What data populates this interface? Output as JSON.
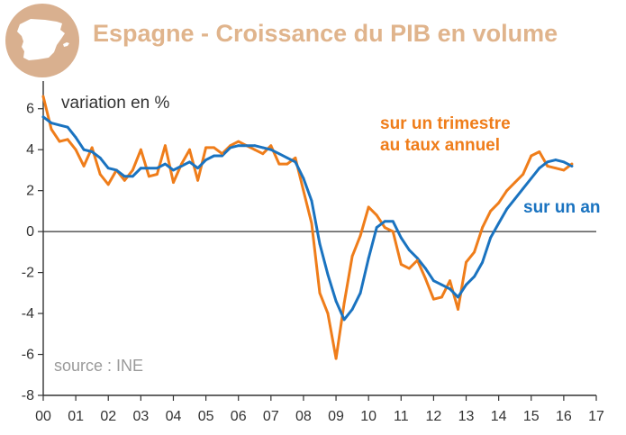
{
  "chart_data": {
    "type": "line",
    "title": "Espagne - Croissance du PIB en volume",
    "ylabel": "variation en %",
    "source": "source : INE",
    "ylim": [
      -8,
      7
    ],
    "xlim": [
      0,
      17
    ],
    "yticks": [
      -8,
      -6,
      -4,
      -2,
      0,
      2,
      4,
      6
    ],
    "xtick_labels": [
      "00",
      "01",
      "02",
      "03",
      "04",
      "05",
      "06",
      "07",
      "08",
      "09",
      "10",
      "11",
      "12",
      "13",
      "14",
      "15",
      "16",
      "17"
    ],
    "grid": false,
    "colors": {
      "annualized": "#ef7d1a",
      "yoy": "#1a73c0",
      "title": "#e0b48c",
      "logo_circle": "#d9b08f",
      "axis": "#333333"
    },
    "series": [
      {
        "name": "sur un trimestre au taux annuel",
        "key": "annualized",
        "x": [
          0.0,
          0.25,
          0.5,
          0.75,
          1.0,
          1.25,
          1.5,
          1.75,
          2.0,
          2.25,
          2.5,
          2.75,
          3.0,
          3.25,
          3.5,
          3.75,
          4.0,
          4.25,
          4.5,
          4.75,
          5.0,
          5.25,
          5.5,
          5.75,
          6.0,
          6.25,
          6.5,
          6.75,
          7.0,
          7.25,
          7.5,
          7.75,
          8.0,
          8.25,
          8.5,
          8.75,
          9.0,
          9.25,
          9.5,
          9.75,
          10.0,
          10.25,
          10.5,
          10.75,
          11.0,
          11.25,
          11.5,
          11.75,
          12.0,
          12.25,
          12.5,
          12.75,
          13.0,
          13.25,
          13.5,
          13.75,
          14.0,
          14.25,
          14.5,
          14.75,
          15.0,
          15.25,
          15.5,
          15.75,
          16.0,
          16.25
        ],
        "values": [
          6.6,
          5.0,
          4.4,
          4.5,
          4.0,
          3.2,
          4.1,
          2.8,
          2.3,
          3.0,
          2.5,
          3.0,
          4.0,
          2.7,
          2.8,
          4.2,
          2.4,
          3.3,
          4.0,
          2.5,
          4.1,
          4.1,
          3.8,
          4.2,
          4.4,
          4.2,
          4.0,
          3.8,
          4.2,
          3.3,
          3.3,
          3.6,
          2.0,
          0.4,
          -3.0,
          -4.0,
          -6.2,
          -3.5,
          -1.2,
          -0.2,
          1.2,
          0.8,
          0.2,
          0.0,
          -1.6,
          -1.8,
          -1.4,
          -2.3,
          -3.3,
          -3.2,
          -2.4,
          -3.8,
          -1.5,
          -1.0,
          0.2,
          1.0,
          1.4,
          2.0,
          2.4,
          2.8,
          3.7,
          3.9,
          3.2,
          3.1,
          3.0,
          3.3
        ]
      },
      {
        "name": "sur un an",
        "key": "yoy",
        "x": [
          0.0,
          0.25,
          0.5,
          0.75,
          1.0,
          1.25,
          1.5,
          1.75,
          2.0,
          2.25,
          2.5,
          2.75,
          3.0,
          3.25,
          3.5,
          3.75,
          4.0,
          4.25,
          4.5,
          4.75,
          5.0,
          5.25,
          5.5,
          5.75,
          6.0,
          6.25,
          6.5,
          6.75,
          7.0,
          7.25,
          7.5,
          7.75,
          8.0,
          8.25,
          8.5,
          8.75,
          9.0,
          9.25,
          9.5,
          9.75,
          10.0,
          10.25,
          10.5,
          10.75,
          11.0,
          11.25,
          11.5,
          11.75,
          12.0,
          12.25,
          12.5,
          12.75,
          13.0,
          13.25,
          13.5,
          13.75,
          14.0,
          14.25,
          14.5,
          14.75,
          15.0,
          15.25,
          15.5,
          15.75,
          16.0,
          16.25
        ],
        "values": [
          5.6,
          5.3,
          5.2,
          5.1,
          4.6,
          4.0,
          3.9,
          3.6,
          3.1,
          3.0,
          2.7,
          2.7,
          3.1,
          3.1,
          3.1,
          3.3,
          3.0,
          3.2,
          3.4,
          3.1,
          3.5,
          3.7,
          3.7,
          4.1,
          4.2,
          4.2,
          4.2,
          4.1,
          4.0,
          3.8,
          3.6,
          3.4,
          2.6,
          1.5,
          -0.6,
          -2.1,
          -3.4,
          -4.3,
          -3.8,
          -3.0,
          -1.3,
          0.2,
          0.5,
          0.5,
          -0.3,
          -0.9,
          -1.3,
          -1.8,
          -2.4,
          -2.6,
          -2.8,
          -3.2,
          -2.6,
          -2.2,
          -1.5,
          -0.3,
          0.4,
          1.1,
          1.6,
          2.1,
          2.6,
          3.1,
          3.4,
          3.5,
          3.4,
          3.2
        ]
      }
    ],
    "labels": {
      "annualized_line1": "sur un trimestre",
      "annualized_line2": "au taux annuel",
      "yoy": "sur un an"
    }
  }
}
